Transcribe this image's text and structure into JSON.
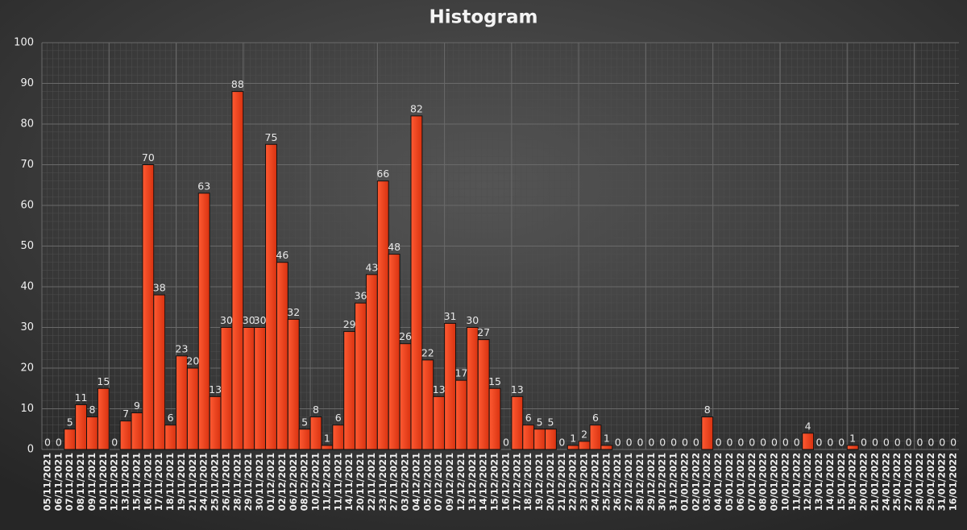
{
  "chart_data": {
    "type": "bar",
    "title": "Histogram",
    "categories": [
      "05/11/2021",
      "06/11/2021",
      "07/11/2021",
      "08/11/2021",
      "09/11/2021",
      "10/11/2021",
      "12/11/2021",
      "13/11/2021",
      "15/11/2021",
      "16/11/2021",
      "17/11/2021",
      "18/11/2021",
      "19/11/2021",
      "21/11/2021",
      "24/11/2021",
      "25/11/2021",
      "26/11/2021",
      "28/11/2021",
      "29/11/2021",
      "30/11/2021",
      "01/12/2021",
      "02/12/2021",
      "06/12/2021",
      "08/12/2021",
      "10/12/2021",
      "11/12/2021",
      "11/11/2021",
      "14/11/2021",
      "20/11/2021",
      "22/11/2021",
      "23/11/2021",
      "27/11/2021",
      "03/12/2021",
      "04/12/2021",
      "05/12/2021",
      "07/12/2021",
      "09/12/2021",
      "12/12/2021",
      "13/12/2021",
      "14/12/2021",
      "15/12/2021",
      "16/12/2021",
      "17/12/2021",
      "18/12/2021",
      "19/12/2021",
      "20/12/2021",
      "21/12/2021",
      "22/12/2021",
      "23/12/2021",
      "24/12/2021",
      "25/12/2021",
      "26/12/2021",
      "27/12/2021",
      "28/12/2021",
      "29/12/2021",
      "30/12/2021",
      "31/12/2021",
      "01/01/2022",
      "02/01/2022",
      "03/01/2022",
      "04/01/2022",
      "05/01/2022",
      "06/01/2022",
      "07/01/2022",
      "08/01/2022",
      "09/01/2022",
      "10/01/2022",
      "11/01/2022",
      "12/01/2022",
      "13/01/2022",
      "14/01/2022",
      "15/01/2022",
      "19/01/2022",
      "20/01/2022",
      "21/01/2022",
      "24/01/2022",
      "25/01/2022",
      "27/01/2022",
      "28/01/2022",
      "29/01/2022",
      "31/01/2022",
      "16/01/2022"
    ],
    "values": [
      0,
      0,
      5,
      11,
      8,
      15,
      0,
      7,
      9,
      70,
      38,
      6,
      23,
      20,
      63,
      13,
      30,
      88,
      30,
      30,
      75,
      46,
      32,
      5,
      8,
      1,
      6,
      29,
      36,
      43,
      66,
      48,
      26,
      82,
      22,
      13,
      31,
      17,
      30,
      27,
      15,
      0,
      13,
      6,
      5,
      5,
      0,
      1,
      2,
      6,
      1,
      0,
      0,
      0,
      0,
      0,
      0,
      0,
      0,
      8,
      0,
      0,
      0,
      0,
      0,
      0,
      0,
      0,
      4,
      0,
      0,
      0,
      1,
      0,
      0,
      0,
      0,
      0,
      0,
      0,
      0,
      0
    ],
    "color": "#e8401c",
    "ylim": [
      0,
      100
    ],
    "yticks": [
      0,
      10,
      20,
      30,
      40,
      50,
      60,
      70,
      80,
      90,
      100
    ],
    "grid": true
  }
}
